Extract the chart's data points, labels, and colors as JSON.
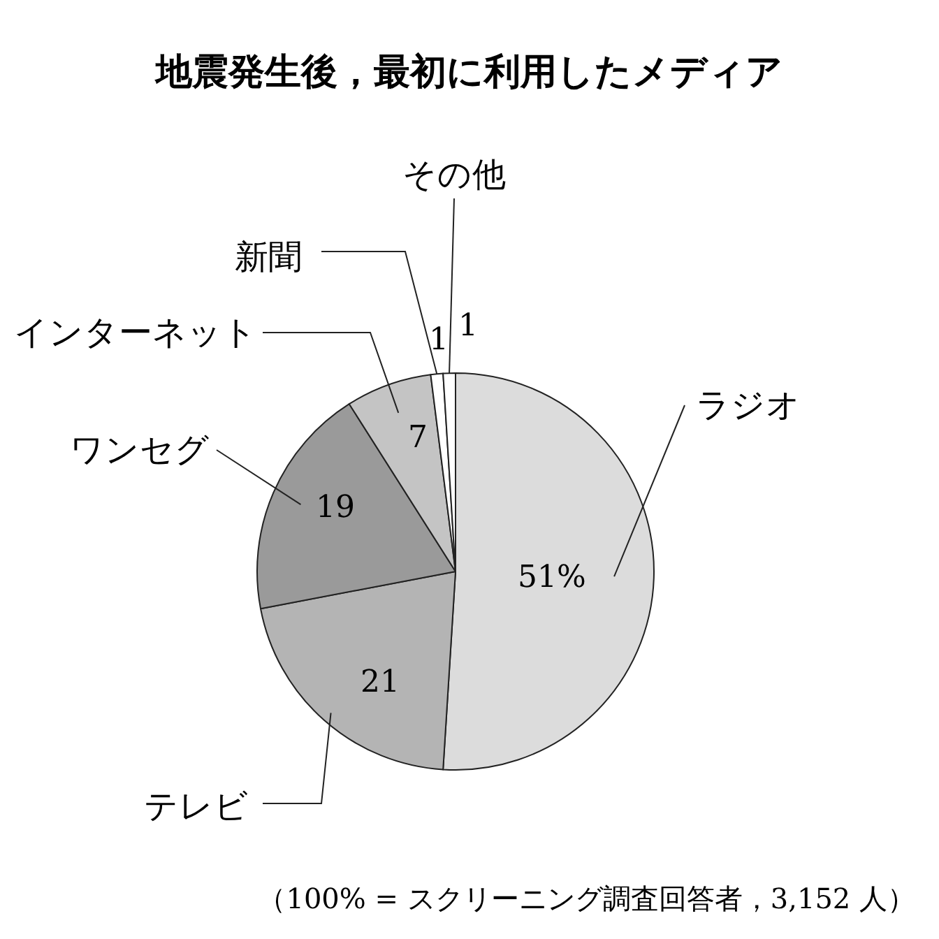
{
  "chart_data": {
    "type": "pie",
    "title": "地震発生後，最初に利用したメディア",
    "categories": [
      "ラジオ",
      "テレビ",
      "ワンセグ",
      "インターネット",
      "新聞",
      "その他"
    ],
    "values": [
      51,
      21,
      19,
      7,
      1,
      1
    ],
    "colors": [
      "#dcdcdc",
      "#b4b4b4",
      "#9a9a9a",
      "#c4c4c4",
      "#ffffff",
      "#ffffff"
    ],
    "value_labels": [
      "51%",
      "21",
      "19",
      "7",
      "1",
      "1"
    ],
    "annotations": [
      "（100% = スクリーニング調査回答者，3,152 人）"
    ]
  }
}
